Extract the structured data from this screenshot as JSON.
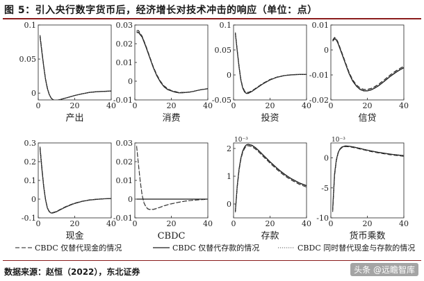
{
  "page": {
    "title": "图 5：引入央行数字货币后，经济增长对技术冲击的响应（单位：点）",
    "source": "数据来源：赵恒（2022），东北证券",
    "watermark": "头条 @远瞻智库"
  },
  "legend": [
    {
      "label": "CBDC 仅替代现金的情况",
      "style": "dashed"
    },
    {
      "label": "CBDC 仅替代存款的情况",
      "style": "solid"
    },
    {
      "label": "CBDC 同时替代现金与存款的情况",
      "style": "dotted"
    }
  ],
  "chart_data": [
    {
      "type": "line",
      "title": "产出",
      "xlim": [
        0,
        40
      ],
      "ylim": [
        -0.01,
        0.1
      ],
      "xticks": [
        "0",
        "20",
        "40"
      ],
      "yticks": [
        {
          "v": 0,
          "t": "0"
        },
        {
          "v": 0.05,
          "t": "0.05"
        },
        {
          "v": 0.1,
          "t": "0.1"
        }
      ],
      "x": [
        1,
        2,
        3,
        4,
        5,
        6,
        7,
        8,
        9,
        10,
        12,
        14,
        16,
        18,
        20,
        24,
        28,
        32,
        36,
        40
      ],
      "series": [
        {
          "name": "CBDC 仅替代现金的情况",
          "values": [
            0.085,
            0.062,
            0.04,
            0.021,
            0.008,
            -0.002,
            -0.007,
            -0.0095,
            -0.0105,
            -0.0105,
            -0.0095,
            -0.008,
            -0.0065,
            -0.005,
            -0.0035,
            -0.001,
            0.001,
            0.002,
            0.0025,
            0.003
          ]
        },
        {
          "name": "CBDC 仅替代存款的情况",
          "values": [
            0.083,
            0.06,
            0.039,
            0.02,
            0.007,
            -0.002,
            -0.007,
            -0.0095,
            -0.0105,
            -0.0105,
            -0.0095,
            -0.008,
            -0.0065,
            -0.005,
            -0.0035,
            -0.001,
            0.001,
            0.002,
            0.0025,
            0.003
          ]
        },
        {
          "name": "CBDC 同时替代现金与存款的情况",
          "values": [
            0.084,
            0.061,
            0.0395,
            0.0205,
            0.0075,
            -0.002,
            -0.007,
            -0.0095,
            -0.0105,
            -0.0105,
            -0.0095,
            -0.008,
            -0.0065,
            -0.005,
            -0.0035,
            -0.001,
            0.001,
            0.002,
            0.0025,
            0.003
          ]
        }
      ]
    },
    {
      "type": "line",
      "title": "消费",
      "xlim": [
        0,
        40
      ],
      "ylim": [
        -0.01,
        0.03
      ],
      "xticks": [
        "0",
        "20",
        "40"
      ],
      "yticks": [
        {
          "v": -0.01,
          "t": "-0.01"
        },
        {
          "v": 0,
          "t": "0"
        },
        {
          "v": 0.01,
          "t": "0.01"
        },
        {
          "v": 0.02,
          "t": "0.02"
        },
        {
          "v": 0.03,
          "t": "0.03"
        }
      ],
      "x": [
        1,
        2,
        4,
        6,
        8,
        10,
        12,
        14,
        16,
        18,
        20,
        22,
        24,
        26,
        28,
        30,
        32,
        34,
        36,
        38,
        40
      ],
      "series": [
        {
          "name": "CBDC 仅替代现金的情况",
          "values": [
            0.027,
            0.027,
            0.024,
            0.019,
            0.0135,
            0.008,
            0.0035,
            0.0,
            -0.0025,
            -0.004,
            -0.005,
            -0.0055,
            -0.006,
            -0.006,
            -0.006,
            -0.0058,
            -0.0055,
            -0.005,
            -0.0046,
            -0.0043,
            -0.004
          ]
        },
        {
          "name": "CBDC 仅替代存款的情况",
          "values": [
            0.026,
            0.026,
            0.0235,
            0.0185,
            0.013,
            0.0075,
            0.003,
            -0.0005,
            -0.003,
            -0.0045,
            -0.0052,
            -0.0058,
            -0.0062,
            -0.0062,
            -0.006,
            -0.0058,
            -0.0055,
            -0.005,
            -0.0046,
            -0.0043,
            -0.004
          ]
        },
        {
          "name": "CBDC 同时替代现金与存款的情况",
          "values": [
            0.0265,
            0.0265,
            0.024,
            0.019,
            0.0133,
            0.0078,
            0.0033,
            -0.0002,
            -0.0028,
            -0.0042,
            -0.0051,
            -0.0056,
            -0.0061,
            -0.0061,
            -0.006,
            -0.0058,
            -0.0055,
            -0.005,
            -0.0046,
            -0.0043,
            -0.004
          ]
        }
      ]
    },
    {
      "type": "line",
      "title": "投资",
      "xlim": [
        0,
        40
      ],
      "ylim": [
        -0.05,
        0.1
      ],
      "xticks": [
        "0",
        "20",
        "40"
      ],
      "yticks": [
        {
          "v": -0.05,
          "t": "-0.05"
        },
        {
          "v": 0,
          "t": "0"
        },
        {
          "v": 0.05,
          "t": "0.05"
        },
        {
          "v": 0.1,
          "t": "0.1"
        }
      ],
      "x": [
        1,
        2,
        3,
        4,
        5,
        6,
        7,
        8,
        10,
        12,
        14,
        16,
        18,
        20,
        24,
        28,
        32,
        36,
        40
      ],
      "series": [
        {
          "name": "CBDC 仅替代现金的情况",
          "values": [
            0.085,
            0.05,
            0.018,
            -0.008,
            -0.024,
            -0.032,
            -0.035,
            -0.035,
            -0.032,
            -0.027,
            -0.022,
            -0.017,
            -0.013,
            -0.009,
            -0.004,
            -0.001,
            0.0005,
            0.001,
            0.001
          ]
        },
        {
          "name": "CBDC 仅替代存款的情况",
          "values": [
            0.083,
            0.048,
            0.016,
            -0.01,
            -0.026,
            -0.034,
            -0.037,
            -0.037,
            -0.033,
            -0.028,
            -0.023,
            -0.018,
            -0.014,
            -0.01,
            -0.0045,
            -0.0012,
            0.0003,
            0.001,
            0.001
          ]
        },
        {
          "name": "CBDC 同时替代现金与存款的情况",
          "values": [
            0.084,
            0.049,
            0.017,
            -0.009,
            -0.025,
            -0.033,
            -0.036,
            -0.036,
            -0.0325,
            -0.0275,
            -0.0225,
            -0.0175,
            -0.0135,
            -0.0095,
            -0.0042,
            -0.0011,
            0.0004,
            0.001,
            0.001
          ]
        }
      ]
    },
    {
      "type": "line",
      "title": "信贷",
      "xlim": [
        0,
        40
      ],
      "ylim": [
        -0.02,
        0.01
      ],
      "xticks": [
        "0",
        "20",
        "40"
      ],
      "yticks": [
        {
          "v": -0.02,
          "t": "-0.02"
        },
        {
          "v": -0.01,
          "t": "-0.01"
        },
        {
          "v": 0,
          "t": "0"
        },
        {
          "v": 0.01,
          "t": "0.01"
        }
      ],
      "x": [
        1,
        2,
        3,
        4,
        6,
        8,
        10,
        12,
        14,
        16,
        18,
        20,
        22,
        24,
        26,
        28,
        30,
        32,
        34,
        36,
        38,
        40
      ],
      "series": [
        {
          "name": "CBDC 仅替代现金的情况",
          "values": [
            0.004,
            0.005,
            0.0045,
            0.003,
            -0.001,
            -0.005,
            -0.009,
            -0.012,
            -0.014,
            -0.0152,
            -0.0158,
            -0.0158,
            -0.0154,
            -0.0147,
            -0.0138,
            -0.0127,
            -0.0115,
            -0.0103,
            -0.0092,
            -0.0082,
            -0.0073,
            -0.0065
          ]
        },
        {
          "name": "CBDC 仅替代存款的情况",
          "values": [
            0.0035,
            0.0045,
            0.004,
            0.0025,
            -0.0015,
            -0.0055,
            -0.0095,
            -0.0125,
            -0.0145,
            -0.0158,
            -0.0164,
            -0.0164,
            -0.016,
            -0.0153,
            -0.0144,
            -0.0133,
            -0.0121,
            -0.0109,
            -0.0098,
            -0.0088,
            -0.0079,
            -0.0071
          ]
        },
        {
          "name": "CBDC 同时替代现金与存款的情况",
          "values": [
            0.0038,
            0.0048,
            0.0043,
            0.0028,
            -0.0012,
            -0.0052,
            -0.0092,
            -0.0122,
            -0.0142,
            -0.0155,
            -0.0161,
            -0.0161,
            -0.0157,
            -0.015,
            -0.0141,
            -0.013,
            -0.0118,
            -0.0106,
            -0.0095,
            -0.0085,
            -0.0076,
            -0.0068
          ]
        }
      ]
    },
    {
      "type": "line",
      "title": "现金",
      "xlim": [
        0,
        40
      ],
      "ylim": [
        -0.1,
        0.3
      ],
      "xticks": [
        "0",
        "20",
        "40"
      ],
      "yticks": [
        {
          "v": -0.1,
          "t": "-0.1"
        },
        {
          "v": 0,
          "t": "0"
        },
        {
          "v": 0.1,
          "t": "0.1"
        },
        {
          "v": 0.2,
          "t": "0.2"
        },
        {
          "v": 0.3,
          "t": "0.3"
        }
      ],
      "x": [
        1,
        2,
        3,
        4,
        5,
        6,
        7,
        8,
        10,
        12,
        14,
        16,
        18,
        20,
        24,
        28,
        32,
        36,
        40
      ],
      "series": [
        {
          "name": "CBDC 仅替代现金的情况",
          "values": [
            0.28,
            0.17,
            0.07,
            0.0,
            -0.045,
            -0.065,
            -0.072,
            -0.072,
            -0.065,
            -0.055,
            -0.045,
            -0.036,
            -0.028,
            -0.021,
            -0.011,
            -0.004,
            0.0,
            0.002,
            0.003
          ]
        },
        {
          "name": "CBDC 仅替代存款的情况",
          "values": [
            0.27,
            0.16,
            0.065,
            -0.003,
            -0.047,
            -0.067,
            -0.074,
            -0.074,
            -0.067,
            -0.057,
            -0.047,
            -0.038,
            -0.03,
            -0.023,
            -0.012,
            -0.005,
            -0.001,
            0.002,
            0.003
          ]
        },
        {
          "name": "CBDC 同时替代现金与存款的情况",
          "values": [
            0.275,
            0.165,
            0.068,
            -0.002,
            -0.046,
            -0.066,
            -0.073,
            -0.073,
            -0.066,
            -0.056,
            -0.046,
            -0.037,
            -0.029,
            -0.022,
            -0.0115,
            -0.0045,
            -0.0005,
            0.002,
            0.003
          ]
        }
      ]
    },
    {
      "type": "line",
      "title": "CBDC",
      "xlim": [
        0,
        40
      ],
      "ylim": [
        -0.01,
        0.03
      ],
      "xticks": [
        "0",
        "20",
        "40"
      ],
      "yticks": [
        {
          "v": -0.01,
          "t": "-0.01"
        },
        {
          "v": 0,
          "t": "0"
        },
        {
          "v": 0.01,
          "t": "0.01"
        },
        {
          "v": 0.02,
          "t": "0.02"
        },
        {
          "v": 0.03,
          "t": "0.03"
        }
      ],
      "x": [
        1,
        2,
        3,
        4,
        5,
        6,
        7,
        8,
        10,
        12,
        14,
        16,
        18,
        20,
        24,
        28,
        32,
        36,
        40
      ],
      "series": [
        {
          "name": "CBDC 仅替代现金的情况",
          "values": [
            0.028,
            0.018,
            0.009,
            0.002,
            -0.002,
            -0.004,
            -0.0052,
            -0.0055,
            -0.0055,
            -0.005,
            -0.0043,
            -0.0036,
            -0.003,
            -0.0025,
            -0.0017,
            -0.001,
            -0.0006,
            -0.0003,
            -0.0001
          ]
        },
        {
          "name": "CBDC 仅替代存款的情况",
          "values": [
            0.0,
            0.0,
            0.0,
            0.0,
            0.0,
            0.0,
            0.0,
            0.0,
            0.0,
            0.0,
            0.0,
            0.0,
            0.0,
            0.0,
            0.0,
            0.0,
            0.0,
            0.0,
            0.0
          ]
        },
        {
          "name": "CBDC 同时替代现金与存款的情况",
          "values": [
            0.0285,
            0.0185,
            0.0095,
            0.0025,
            -0.0018,
            -0.0038,
            -0.005,
            -0.0054,
            -0.0054,
            -0.0049,
            -0.0042,
            -0.0035,
            -0.0029,
            -0.0024,
            -0.0016,
            -0.001,
            -0.0006,
            -0.0003,
            -0.0001
          ]
        }
      ]
    },
    {
      "type": "line",
      "title": "存款",
      "xlim": [
        0,
        40
      ],
      "ylim": [
        -0.5,
        2.2
      ],
      "scale_label": "10⁻³",
      "xticks": [
        "0",
        "20",
        "40"
      ],
      "yticks": [
        {
          "v": 0,
          "t": "0"
        },
        {
          "v": 1,
          "t": "1"
        },
        {
          "v": 2,
          "t": "2"
        }
      ],
      "x": [
        1,
        2,
        3,
        4,
        5,
        6,
        7,
        8,
        10,
        12,
        14,
        16,
        18,
        20,
        22,
        24,
        26,
        28,
        30,
        32,
        34,
        36,
        38,
        40
      ],
      "series": [
        {
          "name": "CBDC 仅替代现金的情况",
          "values": [
            -0.3,
            0.6,
            1.2,
            1.6,
            1.85,
            2.0,
            2.08,
            2.1,
            2.07,
            1.98,
            1.86,
            1.73,
            1.6,
            1.47,
            1.35,
            1.23,
            1.12,
            1.02,
            0.93,
            0.85,
            0.78,
            0.71,
            0.66,
            0.61
          ]
        },
        {
          "name": "CBDC 仅替代存款的情况",
          "values": [
            -0.25,
            0.65,
            1.25,
            1.65,
            1.9,
            2.05,
            2.13,
            2.15,
            2.12,
            2.03,
            1.91,
            1.78,
            1.65,
            1.52,
            1.4,
            1.28,
            1.17,
            1.07,
            0.98,
            0.9,
            0.83,
            0.76,
            0.71,
            0.66
          ]
        },
        {
          "name": "CBDC 同时替代现金与存款的情况",
          "values": [
            -0.28,
            0.62,
            1.22,
            1.62,
            1.87,
            2.02,
            2.1,
            2.12,
            2.09,
            2.0,
            1.88,
            1.75,
            1.62,
            1.49,
            1.37,
            1.25,
            1.14,
            1.04,
            0.95,
            0.87,
            0.8,
            0.73,
            0.68,
            0.63
          ]
        }
      ]
    },
    {
      "type": "line",
      "title": "货币乘数",
      "xlim": [
        0,
        40
      ],
      "ylim": [
        -10,
        2.5
      ],
      "scale_label": "10⁻³",
      "xticks": [
        "0",
        "20",
        "40"
      ],
      "yticks": [
        {
          "v": -10,
          "t": "-10"
        },
        {
          "v": -5,
          "t": "-5"
        },
        {
          "v": 0,
          "t": "0"
        }
      ],
      "x": [
        1,
        2,
        3,
        4,
        5,
        6,
        8,
        10,
        12,
        14,
        16,
        18,
        20,
        22,
        24,
        26,
        28,
        30,
        32,
        34,
        36,
        38,
        40
      ],
      "series": [
        {
          "name": "CBDC 仅替代现金的情况",
          "values": [
            -9.0,
            -3.0,
            -0.5,
            0.8,
            1.4,
            1.7,
            1.9,
            1.85,
            1.75,
            1.62,
            1.48,
            1.34,
            1.2,
            1.07,
            0.95,
            0.84,
            0.74,
            0.65,
            0.56,
            0.48,
            0.41,
            0.34,
            0.28
          ]
        },
        {
          "name": "CBDC 仅替代存款的情况",
          "values": [
            -8.6,
            -2.7,
            -0.3,
            0.9,
            1.5,
            1.8,
            2.0,
            1.95,
            1.85,
            1.72,
            1.58,
            1.44,
            1.3,
            1.17,
            1.05,
            0.94,
            0.84,
            0.75,
            0.66,
            0.58,
            0.51,
            0.44,
            0.38
          ]
        },
        {
          "name": "CBDC 同时替代现金与存款的情况",
          "values": [
            -8.8,
            -2.85,
            -0.4,
            0.85,
            1.45,
            1.75,
            1.95,
            1.9,
            1.8,
            1.67,
            1.53,
            1.39,
            1.25,
            1.12,
            1.0,
            0.89,
            0.79,
            0.7,
            0.61,
            0.53,
            0.46,
            0.39,
            0.33
          ]
        }
      ]
    }
  ]
}
